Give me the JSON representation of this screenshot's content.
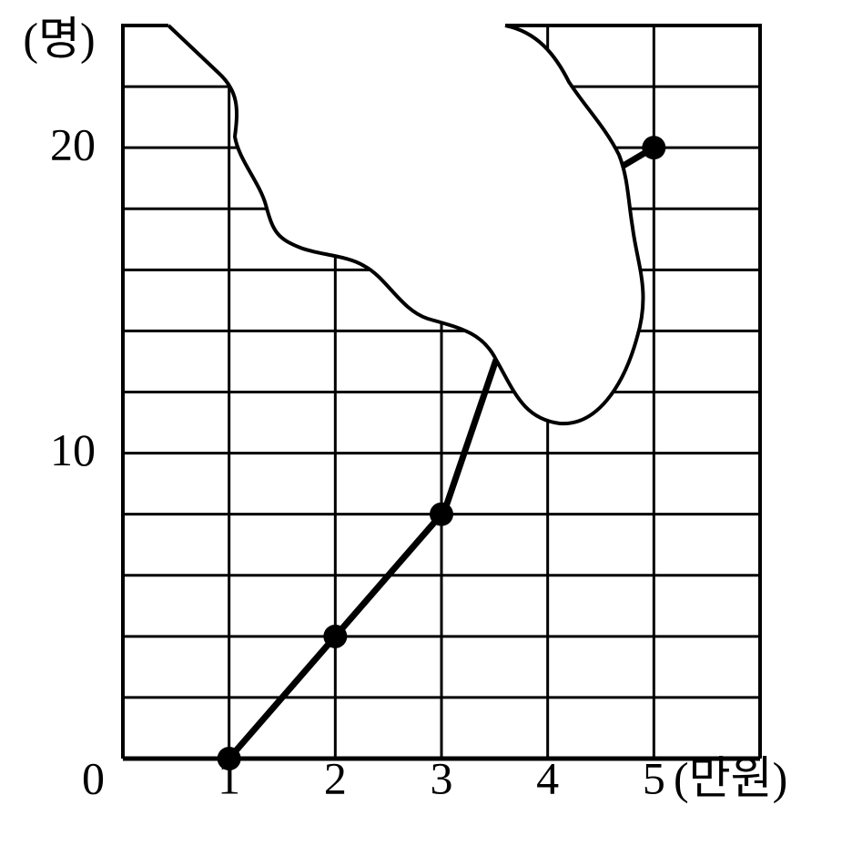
{
  "chart_data": {
    "type": "line",
    "y_label": "(명)",
    "x_unit": "(만원)",
    "x": [
      1,
      2,
      3,
      4,
      5
    ],
    "series": [
      {
        "color": "#000000",
        "values": [
          0,
          4,
          8,
          null,
          20
        ]
      }
    ],
    "xlim": [
      0,
      6
    ],
    "ylim": [
      0,
      24
    ],
    "xticks": [
      0,
      1,
      2,
      3,
      4,
      5
    ],
    "yticks": [
      10,
      20
    ],
    "xgrid": [
      0,
      1,
      2,
      3,
      4,
      5,
      6
    ],
    "ygrid": [
      0,
      2,
      4,
      6,
      8,
      10,
      12,
      14,
      16,
      18,
      20,
      22
    ],
    "grid": true
  }
}
